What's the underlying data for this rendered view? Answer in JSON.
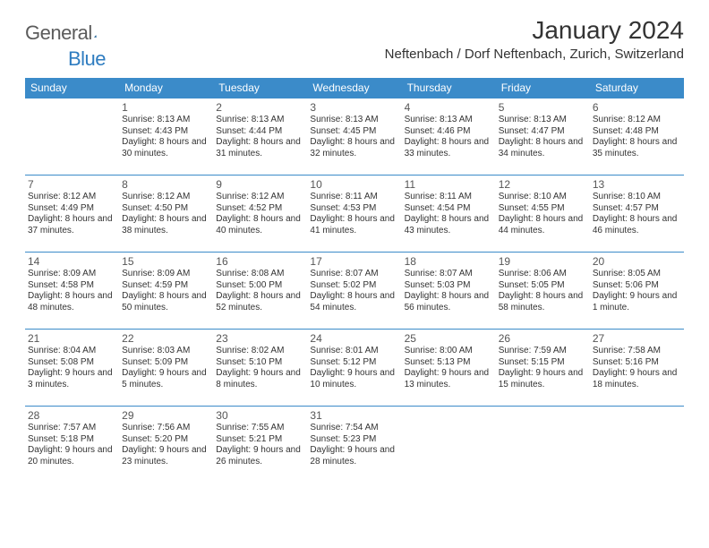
{
  "logo": {
    "text1": "General",
    "text2": "Blue"
  },
  "title": "January 2024",
  "location": "Neftenbach / Dorf Neftenbach, Zurich, Switzerland",
  "colors": {
    "header_bg": "#3b8bc9",
    "header_text": "#ffffff",
    "border": "#3b8bc9",
    "body_text": "#333333",
    "logo_gray": "#5b5b5b",
    "logo_blue": "#2e7cc0",
    "background": "#ffffff"
  },
  "typography": {
    "title_fontsize": 28,
    "location_fontsize": 15,
    "dayheader_fontsize": 12,
    "daynum_fontsize": 12,
    "cell_fontsize": 10,
    "logo_fontsize": 22
  },
  "day_headers": [
    "Sunday",
    "Monday",
    "Tuesday",
    "Wednesday",
    "Thursday",
    "Friday",
    "Saturday"
  ],
  "weeks": [
    [
      null,
      {
        "n": "1",
        "sr": "8:13 AM",
        "ss": "4:43 PM",
        "dl": "8 hours and 30 minutes."
      },
      {
        "n": "2",
        "sr": "8:13 AM",
        "ss": "4:44 PM",
        "dl": "8 hours and 31 minutes."
      },
      {
        "n": "3",
        "sr": "8:13 AM",
        "ss": "4:45 PM",
        "dl": "8 hours and 32 minutes."
      },
      {
        "n": "4",
        "sr": "8:13 AM",
        "ss": "4:46 PM",
        "dl": "8 hours and 33 minutes."
      },
      {
        "n": "5",
        "sr": "8:13 AM",
        "ss": "4:47 PM",
        "dl": "8 hours and 34 minutes."
      },
      {
        "n": "6",
        "sr": "8:12 AM",
        "ss": "4:48 PM",
        "dl": "8 hours and 35 minutes."
      }
    ],
    [
      {
        "n": "7",
        "sr": "8:12 AM",
        "ss": "4:49 PM",
        "dl": "8 hours and 37 minutes."
      },
      {
        "n": "8",
        "sr": "8:12 AM",
        "ss": "4:50 PM",
        "dl": "8 hours and 38 minutes."
      },
      {
        "n": "9",
        "sr": "8:12 AM",
        "ss": "4:52 PM",
        "dl": "8 hours and 40 minutes."
      },
      {
        "n": "10",
        "sr": "8:11 AM",
        "ss": "4:53 PM",
        "dl": "8 hours and 41 minutes."
      },
      {
        "n": "11",
        "sr": "8:11 AM",
        "ss": "4:54 PM",
        "dl": "8 hours and 43 minutes."
      },
      {
        "n": "12",
        "sr": "8:10 AM",
        "ss": "4:55 PM",
        "dl": "8 hours and 44 minutes."
      },
      {
        "n": "13",
        "sr": "8:10 AM",
        "ss": "4:57 PM",
        "dl": "8 hours and 46 minutes."
      }
    ],
    [
      {
        "n": "14",
        "sr": "8:09 AM",
        "ss": "4:58 PM",
        "dl": "8 hours and 48 minutes."
      },
      {
        "n": "15",
        "sr": "8:09 AM",
        "ss": "4:59 PM",
        "dl": "8 hours and 50 minutes."
      },
      {
        "n": "16",
        "sr": "8:08 AM",
        "ss": "5:00 PM",
        "dl": "8 hours and 52 minutes."
      },
      {
        "n": "17",
        "sr": "8:07 AM",
        "ss": "5:02 PM",
        "dl": "8 hours and 54 minutes."
      },
      {
        "n": "18",
        "sr": "8:07 AM",
        "ss": "5:03 PM",
        "dl": "8 hours and 56 minutes."
      },
      {
        "n": "19",
        "sr": "8:06 AM",
        "ss": "5:05 PM",
        "dl": "8 hours and 58 minutes."
      },
      {
        "n": "20",
        "sr": "8:05 AM",
        "ss": "5:06 PM",
        "dl": "9 hours and 1 minute."
      }
    ],
    [
      {
        "n": "21",
        "sr": "8:04 AM",
        "ss": "5:08 PM",
        "dl": "9 hours and 3 minutes."
      },
      {
        "n": "22",
        "sr": "8:03 AM",
        "ss": "5:09 PM",
        "dl": "9 hours and 5 minutes."
      },
      {
        "n": "23",
        "sr": "8:02 AM",
        "ss": "5:10 PM",
        "dl": "9 hours and 8 minutes."
      },
      {
        "n": "24",
        "sr": "8:01 AM",
        "ss": "5:12 PM",
        "dl": "9 hours and 10 minutes."
      },
      {
        "n": "25",
        "sr": "8:00 AM",
        "ss": "5:13 PM",
        "dl": "9 hours and 13 minutes."
      },
      {
        "n": "26",
        "sr": "7:59 AM",
        "ss": "5:15 PM",
        "dl": "9 hours and 15 minutes."
      },
      {
        "n": "27",
        "sr": "7:58 AM",
        "ss": "5:16 PM",
        "dl": "9 hours and 18 minutes."
      }
    ],
    [
      {
        "n": "28",
        "sr": "7:57 AM",
        "ss": "5:18 PM",
        "dl": "9 hours and 20 minutes."
      },
      {
        "n": "29",
        "sr": "7:56 AM",
        "ss": "5:20 PM",
        "dl": "9 hours and 23 minutes."
      },
      {
        "n": "30",
        "sr": "7:55 AM",
        "ss": "5:21 PM",
        "dl": "9 hours and 26 minutes."
      },
      {
        "n": "31",
        "sr": "7:54 AM",
        "ss": "5:23 PM",
        "dl": "9 hours and 28 minutes."
      },
      null,
      null,
      null
    ]
  ],
  "labels": {
    "sunrise": "Sunrise: ",
    "sunset": "Sunset: ",
    "daylight": "Daylight: "
  }
}
